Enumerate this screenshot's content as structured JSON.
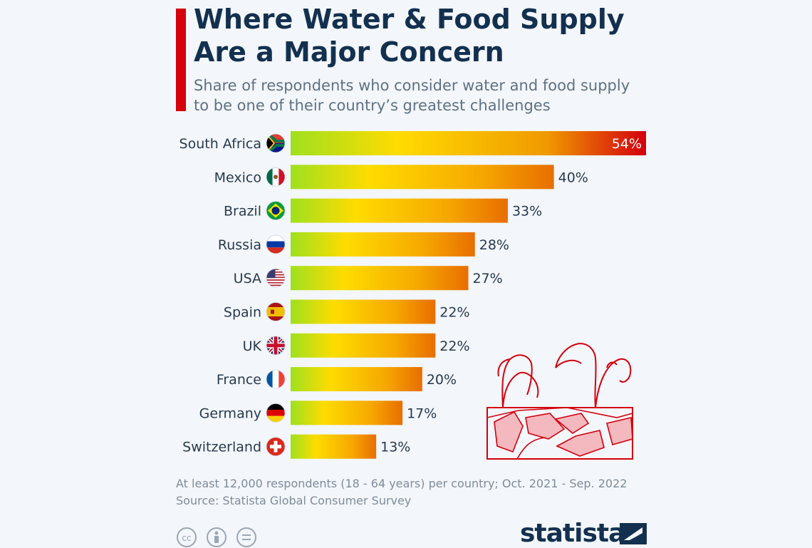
{
  "header": {
    "title_line1": "Where Water & Food Supply",
    "title_line2": "Are a Major Concern",
    "subtitle_line1": "Share of respondents who consider water and food supply",
    "subtitle_line2": "to be one of their country’s greatest challenges"
  },
  "colors": {
    "accent": "#d4000d",
    "title": "#13304f",
    "gradient": [
      "#9fe01f",
      "#ffdc00",
      "#f6a800",
      "#e86e00"
    ],
    "gradient_max": [
      "#9fe01f",
      "#ffdc00",
      "#f09a00",
      "#d4000d"
    ]
  },
  "chart_data": {
    "type": "bar",
    "orientation": "horizontal",
    "unit": "%",
    "categories": [
      "South Africa",
      "Mexico",
      "Brazil",
      "Russia",
      "USA",
      "Spain",
      "UK",
      "France",
      "Germany",
      "Switzerland"
    ],
    "values": [
      54,
      40,
      33,
      28,
      27,
      22,
      22,
      20,
      17,
      13
    ],
    "labels": [
      "54%",
      "40%",
      "33%",
      "28%",
      "27%",
      "22%",
      "22%",
      "20%",
      "17%",
      "13%"
    ],
    "flags": [
      "south-africa-flag",
      "mexico-flag",
      "brazil-flag",
      "russia-flag",
      "usa-flag",
      "spain-flag",
      "uk-flag",
      "france-flag",
      "germany-flag",
      "switzerland-flag"
    ],
    "xlim": [
      0,
      54
    ]
  },
  "footer": {
    "note": "At least 12,000 respondents (18 - 64 years) per country; Oct. 2021 - Sep. 2022",
    "source": "Source: Statista Global Consumer Survey",
    "license_icons": [
      "cc-icon",
      "attribution-icon",
      "no-derivatives-icon"
    ],
    "brand": "statista"
  }
}
